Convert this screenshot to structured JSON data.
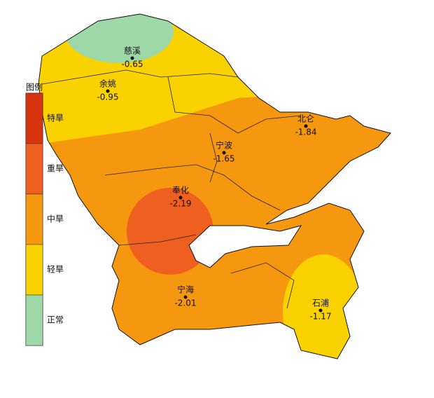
{
  "legend": {
    "title": "图例",
    "items": [
      {
        "label": "特旱",
        "color": "#d8330f"
      },
      {
        "label": "重旱",
        "color": "#ef5f1f"
      },
      {
        "label": "中旱",
        "color": "#f5980f"
      },
      {
        "label": "轻旱",
        "color": "#fad200"
      },
      {
        "label": "正常",
        "color": "#9dd8a8"
      }
    ]
  },
  "stations": [
    {
      "name": "慈溪",
      "value": -0.65
    },
    {
      "name": "余姚",
      "value": -0.95
    },
    {
      "name": "北仑",
      "value": -1.84
    },
    {
      "name": "宁波",
      "value": -1.65
    },
    {
      "name": "奉化",
      "value": -2.19
    },
    {
      "name": "宁海",
      "value": -2.01
    },
    {
      "name": "石浦",
      "value": -1.17
    }
  ]
}
